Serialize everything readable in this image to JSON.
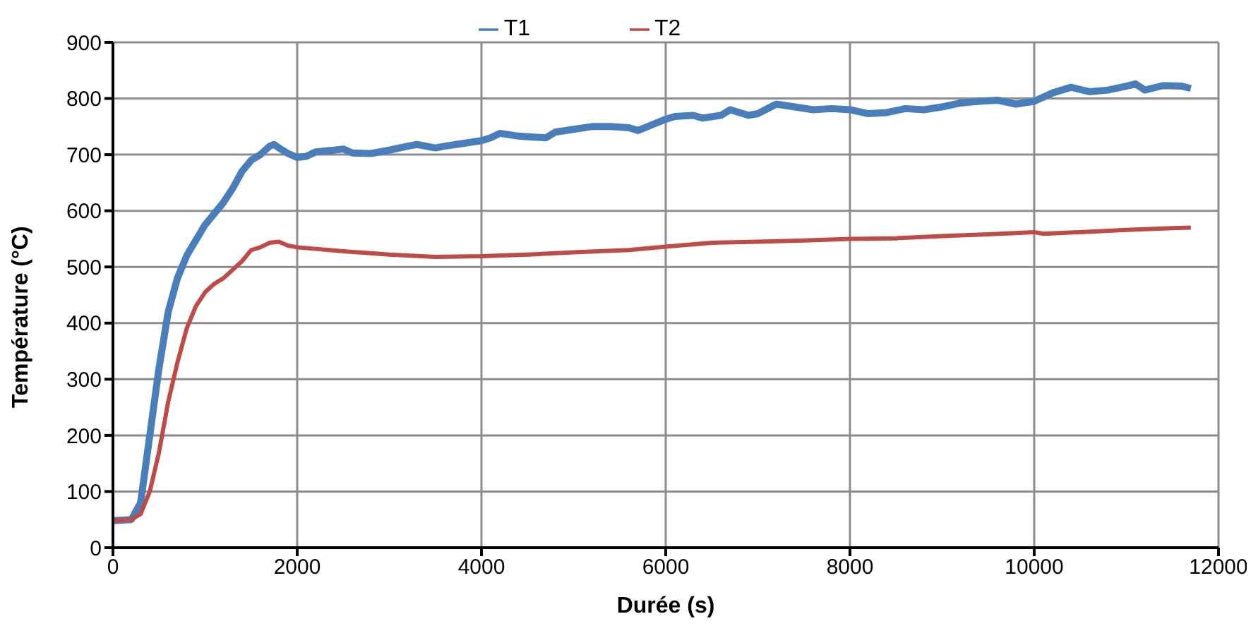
{
  "chart_data": {
    "type": "line",
    "xlabel": "Durée (s)",
    "ylabel": "Température (°C)",
    "xlim": [
      0,
      12000
    ],
    "xticks": [
      0,
      2000,
      4000,
      6000,
      8000,
      10000,
      12000
    ],
    "ylim": [
      0,
      900
    ],
    "yticks": [
      0,
      100,
      200,
      300,
      400,
      500,
      600,
      700,
      800,
      900
    ],
    "grid": true,
    "legend": "top",
    "marker": "none",
    "line_style": "solid",
    "series": [
      {
        "name": "T1",
        "color": "#4a7ebb",
        "x": [
          0,
          200,
          300,
          400,
          500,
          600,
          700,
          800,
          1000,
          1200,
          1300,
          1400,
          1500,
          1600,
          1700,
          1750,
          1800,
          1900,
          2000,
          2100,
          2200,
          2400,
          2500,
          2600,
          2800,
          3000,
          3200,
          3300,
          3500,
          3600,
          3800,
          4000,
          4100,
          4200,
          4400,
          4500,
          4700,
          4800,
          5000,
          5200,
          5400,
          5600,
          5700,
          6000,
          6100,
          6300,
          6400,
          6600,
          6700,
          6900,
          7000,
          7200,
          7400,
          7600,
          7800,
          8000,
          8200,
          8400,
          8600,
          8800,
          9000,
          9200,
          9400,
          9600,
          9800,
          10000,
          10200,
          10400,
          10600,
          10800,
          11000,
          11100,
          11200,
          11400,
          11600,
          11700
        ],
        "values": [
          48,
          50,
          80,
          200,
          320,
          420,
          480,
          520,
          575,
          615,
          640,
          670,
          690,
          700,
          715,
          718,
          712,
          702,
          695,
          697,
          705,
          708,
          710,
          703,
          702,
          708,
          715,
          718,
          712,
          715,
          720,
          725,
          730,
          738,
          733,
          732,
          730,
          740,
          745,
          750,
          750,
          748,
          743,
          763,
          768,
          770,
          765,
          770,
          780,
          770,
          773,
          790,
          785,
          780,
          782,
          780,
          773,
          775,
          782,
          780,
          785,
          792,
          795,
          797,
          790,
          795,
          810,
          820,
          812,
          815,
          822,
          826,
          815,
          823,
          822,
          818
        ]
      },
      {
        "name": "T2",
        "color": "#be4b48",
        "x": [
          0,
          200,
          300,
          400,
          500,
          600,
          700,
          800,
          900,
          1000,
          1100,
          1200,
          1400,
          1500,
          1600,
          1700,
          1800,
          1900,
          2000,
          2500,
          3000,
          3500,
          4000,
          4500,
          5000,
          5600,
          6000,
          6500,
          7000,
          7500,
          8000,
          8500,
          9000,
          9500,
          10000,
          10100,
          10500,
          11000,
          11500,
          11700
        ],
        "values": [
          48,
          50,
          60,
          100,
          170,
          260,
          330,
          390,
          430,
          455,
          470,
          480,
          510,
          530,
          535,
          543,
          545,
          538,
          535,
          528,
          522,
          518,
          519,
          522,
          526,
          530,
          536,
          543,
          545,
          547,
          550,
          551,
          555,
          558,
          562,
          559,
          562,
          566,
          569,
          570
        ]
      }
    ]
  }
}
